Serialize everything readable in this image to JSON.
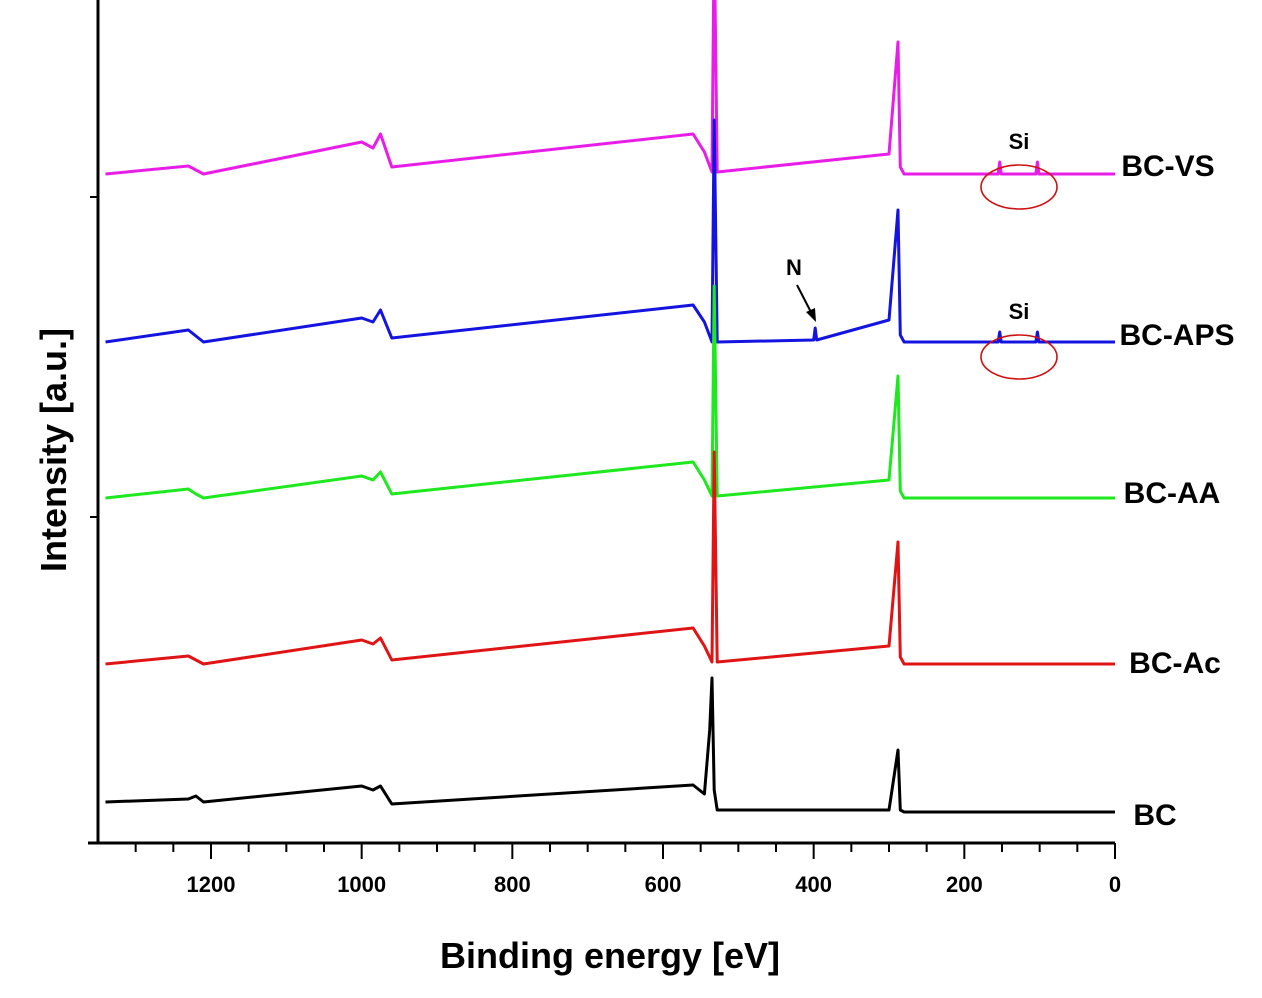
{
  "chart_data": {
    "type": "line",
    "xlabel": "Binding energy [eV]",
    "ylabel": "Intensity [a.u.]",
    "x_ticks": [
      1200,
      1000,
      800,
      600,
      400,
      200,
      0
    ],
    "xlim": [
      1350,
      0
    ],
    "x_reversed": true,
    "y_ticks_labeled": false,
    "grid": false,
    "series": [
      {
        "name": "BC-VS",
        "color": "#e81ee8",
        "offset": 4,
        "points": [
          [
            1340,
            18
          ],
          [
            1230,
            26
          ],
          [
            1220,
            22
          ],
          [
            1210,
            18
          ],
          [
            1000,
            50
          ],
          [
            985,
            44
          ],
          [
            975,
            58
          ],
          [
            960,
            25
          ],
          [
            560,
            58
          ],
          [
            545,
            40
          ],
          [
            535,
            20
          ],
          [
            532,
            260
          ],
          [
            528,
            20
          ],
          [
            300,
            38
          ],
          [
            288,
            150
          ],
          [
            285,
            25
          ],
          [
            280,
            18
          ],
          [
            155,
            18
          ],
          [
            153,
            30
          ],
          [
            151,
            18
          ],
          [
            105,
            18
          ],
          [
            103,
            30
          ],
          [
            101,
            18
          ],
          [
            0,
            18
          ]
        ]
      },
      {
        "name": "BC-APS",
        "color": "#1414e0",
        "offset": 3,
        "points": [
          [
            1340,
            18
          ],
          [
            1230,
            30
          ],
          [
            1220,
            24
          ],
          [
            1210,
            18
          ],
          [
            1000,
            42
          ],
          [
            985,
            38
          ],
          [
            975,
            50
          ],
          [
            960,
            22
          ],
          [
            560,
            55
          ],
          [
            545,
            38
          ],
          [
            535,
            18
          ],
          [
            532,
            240
          ],
          [
            528,
            18
          ],
          [
            400,
            20
          ],
          [
            398,
            32
          ],
          [
            396,
            20
          ],
          [
            300,
            40
          ],
          [
            288,
            150
          ],
          [
            285,
            25
          ],
          [
            280,
            18
          ],
          [
            155,
            18
          ],
          [
            153,
            28
          ],
          [
            151,
            18
          ],
          [
            105,
            18
          ],
          [
            103,
            28
          ],
          [
            101,
            18
          ],
          [
            0,
            18
          ]
        ]
      },
      {
        "name": "BC-AA",
        "color": "#1ee81e",
        "offset": 2,
        "points": [
          [
            1340,
            18
          ],
          [
            1230,
            27
          ],
          [
            1220,
            22
          ],
          [
            1210,
            18
          ],
          [
            1000,
            40
          ],
          [
            985,
            36
          ],
          [
            975,
            44
          ],
          [
            960,
            22
          ],
          [
            560,
            54
          ],
          [
            545,
            36
          ],
          [
            535,
            20
          ],
          [
            532,
            230
          ],
          [
            528,
            20
          ],
          [
            300,
            36
          ],
          [
            288,
            140
          ],
          [
            285,
            25
          ],
          [
            280,
            18
          ],
          [
            0,
            18
          ]
        ]
      },
      {
        "name": "BC-Ac",
        "color": "#e01414",
        "offset": 1,
        "points": [
          [
            1340,
            18
          ],
          [
            1230,
            26
          ],
          [
            1220,
            22
          ],
          [
            1210,
            18
          ],
          [
            1000,
            42
          ],
          [
            985,
            38
          ],
          [
            975,
            44
          ],
          [
            960,
            22
          ],
          [
            560,
            54
          ],
          [
            545,
            36
          ],
          [
            535,
            20
          ],
          [
            532,
            230
          ],
          [
            528,
            20
          ],
          [
            300,
            36
          ],
          [
            288,
            140
          ],
          [
            285,
            25
          ],
          [
            280,
            18
          ],
          [
            0,
            18
          ]
        ]
      },
      {
        "name": "BC",
        "color": "#000000",
        "offset": 0,
        "points": [
          [
            1340,
            28
          ],
          [
            1230,
            31
          ],
          [
            1220,
            34
          ],
          [
            1210,
            28
          ],
          [
            1000,
            44
          ],
          [
            985,
            40
          ],
          [
            975,
            44
          ],
          [
            960,
            26
          ],
          [
            560,
            45
          ],
          [
            545,
            36
          ],
          [
            538,
            100
          ],
          [
            535,
            152
          ],
          [
            532,
            40
          ],
          [
            528,
            20
          ],
          [
            300,
            20
          ],
          [
            288,
            80
          ],
          [
            285,
            20
          ],
          [
            280,
            18
          ],
          [
            0,
            18
          ]
        ]
      }
    ],
    "annotations": [
      {
        "text": "Si",
        "series": "BC-VS"
      },
      {
        "text": "Si",
        "series": "BC-APS"
      },
      {
        "text": "N",
        "series": "BC-APS",
        "x": 398
      }
    ]
  }
}
